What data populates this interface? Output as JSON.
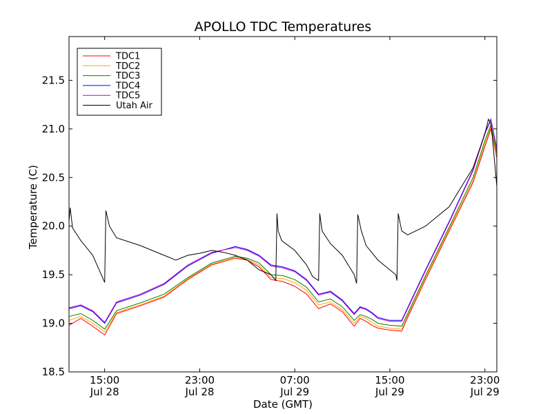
{
  "chart_data": {
    "type": "line",
    "title": "APOLLO TDC Temperatures",
    "xlabel": "Date (GMT)",
    "ylabel": "Temperature (C)",
    "xlim": [
      12.0,
      48.0
    ],
    "ylim": [
      18.5,
      21.95
    ],
    "grid": false,
    "legend_position": "top-left",
    "yticks": [
      {
        "value": 18.5,
        "label": "18.5"
      },
      {
        "value": 19.0,
        "label": "19.0"
      },
      {
        "value": 19.5,
        "label": "19.5"
      },
      {
        "value": 20.0,
        "label": "20.0"
      },
      {
        "value": 20.5,
        "label": "20.5"
      },
      {
        "value": 21.0,
        "label": "21.0"
      },
      {
        "value": 21.5,
        "label": "21.5"
      }
    ],
    "xticks": [
      {
        "value": 15,
        "time": "15:00",
        "date": "Jul 28"
      },
      {
        "value": 23,
        "time": "23:00",
        "date": "Jul 28"
      },
      {
        "value": 31,
        "time": "07:00",
        "date": "Jul 29"
      },
      {
        "value": 39,
        "time": "15:00",
        "date": "Jul 29"
      },
      {
        "value": 47,
        "time": "23:00",
        "date": "Jul 29"
      }
    ],
    "series": [
      {
        "name": "TDC1",
        "color": "#ff0000",
        "x": [
          12.0,
          13.0,
          14.0,
          15.0,
          16.0,
          18.0,
          20.0,
          22.0,
          24.0,
          26.0,
          27.0,
          28.0,
          29.0,
          30.0,
          31.0,
          32.0,
          33.0,
          34.0,
          35.0,
          36.0,
          36.5,
          37.0,
          37.5,
          38.0,
          39.0,
          40.0,
          40.5,
          42.0,
          44.0,
          46.0,
          47.0,
          47.5,
          48.0
        ],
        "y": [
          18.98,
          19.05,
          18.97,
          18.88,
          19.1,
          19.18,
          19.27,
          19.45,
          19.6,
          19.67,
          19.65,
          19.58,
          19.45,
          19.43,
          19.38,
          19.3,
          19.15,
          19.2,
          19.12,
          18.97,
          19.05,
          19.02,
          18.98,
          18.95,
          18.93,
          18.92,
          19.06,
          19.45,
          19.95,
          20.45,
          20.82,
          21.0,
          20.7
        ]
      },
      {
        "name": "TDC2",
        "color": "#ffa500",
        "x": [
          12.0,
          13.0,
          14.0,
          15.0,
          16.0,
          18.0,
          20.0,
          22.0,
          24.0,
          26.0,
          27.0,
          28.0,
          29.0,
          30.0,
          31.0,
          32.0,
          33.0,
          34.0,
          35.0,
          36.0,
          36.5,
          37.0,
          37.5,
          38.0,
          39.0,
          40.0,
          40.5,
          42.0,
          44.0,
          46.0,
          47.0,
          47.5,
          48.0
        ],
        "y": [
          19.03,
          19.07,
          19.0,
          18.91,
          19.11,
          19.19,
          19.28,
          19.46,
          19.61,
          19.68,
          19.66,
          19.6,
          19.47,
          19.46,
          19.42,
          19.34,
          19.19,
          19.22,
          19.14,
          19.0,
          19.07,
          19.05,
          19.01,
          18.97,
          18.95,
          18.94,
          19.08,
          19.47,
          19.97,
          20.47,
          20.85,
          21.02,
          20.72
        ]
      },
      {
        "name": "TDC3",
        "color": "#008000",
        "x": [
          12.0,
          13.0,
          14.0,
          15.0,
          16.0,
          18.0,
          20.0,
          22.0,
          24.0,
          26.0,
          27.0,
          28.0,
          29.0,
          30.0,
          31.0,
          32.0,
          33.0,
          34.0,
          35.0,
          36.0,
          36.5,
          37.0,
          37.5,
          38.0,
          39.0,
          40.0,
          40.5,
          42.0,
          44.0,
          46.0,
          47.0,
          47.5,
          48.0
        ],
        "y": [
          19.07,
          19.1,
          19.03,
          18.94,
          19.13,
          19.21,
          19.3,
          19.47,
          19.62,
          19.69,
          19.67,
          19.62,
          19.5,
          19.49,
          19.45,
          19.37,
          19.22,
          19.25,
          19.17,
          19.03,
          19.09,
          19.07,
          19.04,
          19.0,
          18.98,
          18.97,
          19.1,
          19.49,
          19.99,
          20.5,
          20.88,
          21.04,
          20.75
        ]
      },
      {
        "name": "TDC4",
        "color": "#0000ff",
        "x": [
          12.0,
          13.0,
          14.0,
          15.0,
          16.0,
          18.0,
          20.0,
          22.0,
          24.0,
          26.0,
          27.0,
          28.0,
          29.0,
          30.0,
          31.0,
          32.0,
          33.0,
          34.0,
          35.0,
          36.0,
          36.5,
          37.0,
          37.5,
          38.0,
          39.0,
          40.0,
          40.5,
          42.0,
          44.0,
          46.0,
          47.0,
          47.5,
          48.0
        ],
        "y": [
          19.15,
          19.18,
          19.12,
          19.0,
          19.21,
          19.29,
          19.4,
          19.59,
          19.72,
          19.79,
          19.76,
          19.7,
          19.6,
          19.58,
          19.54,
          19.45,
          19.3,
          19.33,
          19.24,
          19.1,
          19.17,
          19.15,
          19.11,
          19.06,
          19.03,
          19.03,
          19.16,
          19.55,
          20.05,
          20.58,
          20.96,
          21.1,
          20.8
        ]
      },
      {
        "name": "TDC5",
        "color": "#bf00bf",
        "x": [
          12.0,
          13.0,
          14.0,
          15.0,
          16.0,
          18.0,
          20.0,
          22.0,
          24.0,
          26.0,
          27.0,
          28.0,
          29.0,
          30.0,
          31.0,
          32.0,
          33.0,
          34.0,
          35.0,
          36.0,
          36.5,
          37.0,
          37.5,
          38.0,
          39.0,
          40.0,
          40.5,
          42.0,
          44.0,
          46.0,
          47.0,
          47.5,
          48.0
        ],
        "y": [
          19.16,
          19.19,
          19.13,
          19.01,
          19.22,
          19.3,
          19.41,
          19.6,
          19.73,
          19.78,
          19.75,
          19.69,
          19.59,
          19.57,
          19.53,
          19.44,
          19.29,
          19.32,
          19.23,
          19.09,
          19.16,
          19.14,
          19.1,
          19.05,
          19.02,
          19.02,
          19.15,
          19.54,
          20.04,
          20.57,
          20.95,
          21.09,
          20.79
        ]
      },
      {
        "name": "Utah Air",
        "color": "#000000",
        "x": [
          12.0,
          12.1,
          12.3,
          13.0,
          14.0,
          14.9,
          15.0,
          15.1,
          15.4,
          16.0,
          18.0,
          20.0,
          21.0,
          22.0,
          23.0,
          24.0,
          25.0,
          26.0,
          27.0,
          28.0,
          29.0,
          29.4,
          29.5,
          29.6,
          29.9,
          31.0,
          32.0,
          32.5,
          33.0,
          33.1,
          33.3,
          34.0,
          35.0,
          36.0,
          36.2,
          36.3,
          36.6,
          37.0,
          38.0,
          39.0,
          39.5,
          39.6,
          39.7,
          40.0,
          40.5,
          42.0,
          44.0,
          45.0,
          46.0,
          47.0,
          47.3,
          47.5,
          47.6,
          48.0
        ],
        "y": [
          20.05,
          20.19,
          19.98,
          19.85,
          19.7,
          19.45,
          19.42,
          20.16,
          20.0,
          19.88,
          19.8,
          19.7,
          19.65,
          19.7,
          19.72,
          19.75,
          19.73,
          19.7,
          19.65,
          19.55,
          19.5,
          19.44,
          20.13,
          19.95,
          19.85,
          19.75,
          19.6,
          19.48,
          19.44,
          20.13,
          19.95,
          19.82,
          19.7,
          19.5,
          19.41,
          20.12,
          19.95,
          19.8,
          19.65,
          19.55,
          19.5,
          19.44,
          20.13,
          19.95,
          19.91,
          20.0,
          20.2,
          20.4,
          20.6,
          20.95,
          21.1,
          21.05,
          20.95,
          20.41
        ]
      }
    ]
  }
}
